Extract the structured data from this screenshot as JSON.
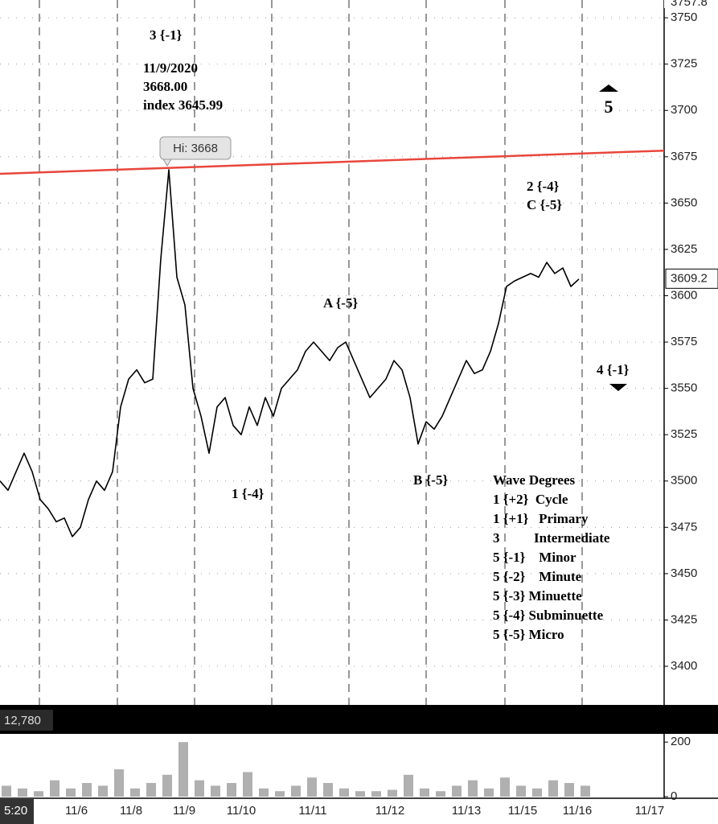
{
  "chart_data": {
    "type": "line",
    "price": {
      "color": "#000000",
      "values": [
        3500,
        3495,
        3505,
        3515,
        3505,
        3490,
        3485,
        3478,
        3480,
        3470,
        3475,
        3490,
        3500,
        3495,
        3505,
        3540,
        3555,
        3560,
        3553,
        3555,
        3620,
        3668,
        3610,
        3595,
        3550,
        3535,
        3515,
        3540,
        3545,
        3530,
        3525,
        3540,
        3530,
        3545,
        3535,
        3550,
        3555,
        3560,
        3570,
        3575,
        3570,
        3565,
        3572,
        3575,
        3565,
        3555,
        3545,
        3550,
        3555,
        3565,
        3560,
        3545,
        3520,
        3532,
        3528,
        3535,
        3545,
        3555,
        3565,
        3558,
        3560,
        3570,
        3585,
        3605,
        3608,
        3610,
        3612,
        3610,
        3618,
        3612,
        3615,
        3605,
        3609
      ]
    },
    "ylim": [
      3379.6,
      3759.6
    ],
    "yticks": [
      3400,
      3425,
      3450,
      3475,
      3500,
      3525,
      3550,
      3575,
      3600,
      3625,
      3650,
      3675,
      3700,
      3725,
      3750
    ],
    "grid": true,
    "top_label": "3757.8",
    "last_price": 3609.2,
    "trendline": {
      "color": "#e8463c",
      "values": [
        3665.8,
        3678.3
      ]
    },
    "categories": [
      "11/6",
      "11/8",
      "11/9",
      "11/10",
      "11/11",
      "11/12",
      "11/13",
      "11/15",
      "11/16",
      "11/17"
    ],
    "time_label": "5:20",
    "volume": {
      "color": "#b0b0b0",
      "header": "12,780",
      "values": [
        40,
        30,
        20,
        60,
        30,
        50,
        40,
        100,
        30,
        50,
        80,
        200,
        60,
        40,
        50,
        90,
        30,
        20,
        40,
        70,
        50,
        30,
        20,
        20,
        25,
        80,
        30,
        20,
        40,
        60,
        30,
        70,
        40,
        30,
        60,
        50,
        40
      ],
      "ylim": [
        0,
        230
      ],
      "yticks": [
        0,
        200
      ]
    },
    "annotations": {
      "wave_top": "3 {-1}",
      "date": "11/9/2020",
      "high": "3668.00",
      "index": "index 3645.99",
      "hi_tag": "Hi: 3668",
      "five": "5",
      "two": "2  {-4}",
      "c": "C {-5}",
      "a": "A {-5}",
      "four": "4 {-1}",
      "one": "1 {-4}",
      "b": "B {-5}"
    },
    "wave_degrees": {
      "title": "Wave Degrees",
      "rows": [
        "1 {+2}  Cycle",
        "1 {+1}   Primary",
        "3          Intermediate",
        "5 {-1}    Minor",
        "5 {-2}    Minute",
        "5 {-3} Minuette",
        "5 {-4} Subminuette",
        "5 {-5} Micro"
      ]
    }
  }
}
